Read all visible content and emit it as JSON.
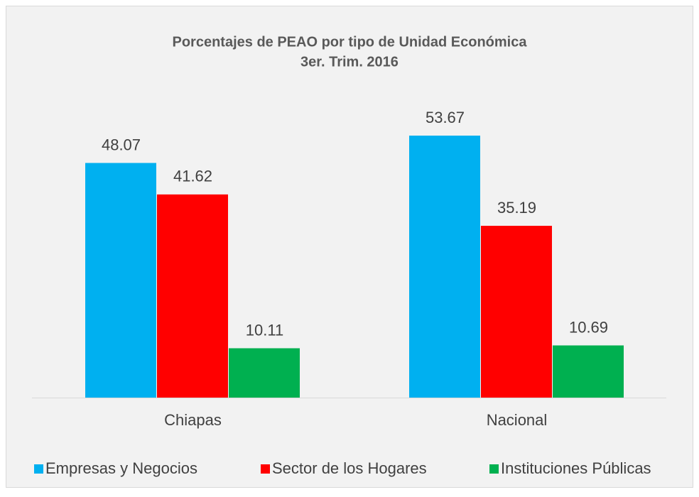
{
  "chart_data": {
    "type": "bar",
    "title": "Porcentajes de PEAO por tipo de Unidad Económica",
    "subtitle": "3er. Trim. 2016",
    "categories": [
      "Chiapas",
      "Nacional"
    ],
    "series": [
      {
        "name": "Empresas y Negocios",
        "color": "#00b0f0",
        "values": [
          48.07,
          53.67
        ]
      },
      {
        "name": "Sector de los Hogares",
        "color": "#ff0000",
        "values": [
          41.62,
          35.19
        ]
      },
      {
        "name": "Instituciones Públicas",
        "color": "#00b050",
        "values": [
          10.11,
          10.69
        ]
      }
    ],
    "legend": "bottom"
  }
}
